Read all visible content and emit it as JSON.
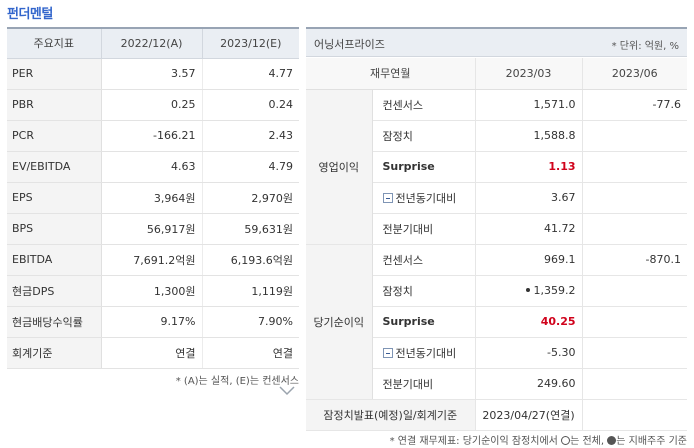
{
  "section_title": "펀더멘털",
  "left": {
    "headers": [
      "주요지표",
      "2022/12(A)",
      "2023/12(E)"
    ],
    "rows": [
      {
        "label": "PER",
        "a": "3.57",
        "e": "4.77"
      },
      {
        "label": "PBR",
        "a": "0.25",
        "e": "0.24"
      },
      {
        "label": "PCR",
        "a": "-166.21",
        "e": "2.43"
      },
      {
        "label": "EV/EBITDA",
        "a": "4.63",
        "e": "4.79"
      },
      {
        "label": "EPS",
        "a": "3,964원",
        "e": "2,970원"
      },
      {
        "label": "BPS",
        "a": "56,917원",
        "e": "59,631원"
      },
      {
        "label": "EBITDA",
        "a": "7,691.2억원",
        "e": "6,193.6억원"
      },
      {
        "label": "현금DPS",
        "a": "1,300원",
        "e": "1,119원"
      },
      {
        "label": "현금배당수익률",
        "a": "9.17%",
        "e": "7.90%"
      },
      {
        "label": "회계기준",
        "a": "연결",
        "e": "연결"
      }
    ],
    "note": "* (A)는 실적, (E)는 컨센서스"
  },
  "right": {
    "company": "어닝서프라이즈",
    "unit": "* 단위: 억원, %",
    "headers": [
      "재무연월",
      "2023/03",
      "2023/06"
    ],
    "groups": [
      {
        "name": "영업이익",
        "rows": [
          {
            "label": "컨센서스",
            "v1": "1,571.0",
            "v2": "-77.6"
          },
          {
            "label": "잠정치",
            "v1": "1,588.8",
            "v2": ""
          },
          {
            "label": "Surprise",
            "v1": "1.13",
            "v2": ""
          },
          {
            "label": "전년동기대비",
            "v1": "3.67",
            "v2": ""
          },
          {
            "label": "전분기대비",
            "v1": "41.72",
            "v2": ""
          }
        ]
      },
      {
        "name": "당기순이익",
        "rows": [
          {
            "label": "컨센서스",
            "v1": "969.1",
            "v2": "-870.1"
          },
          {
            "label": "잠정치",
            "v1": "1,359.2",
            "v2": ""
          },
          {
            "label": "Surprise",
            "v1": "40.25",
            "v2": ""
          },
          {
            "label": "전년동기대비",
            "v1": "-5.30",
            "v2": ""
          },
          {
            "label": "전분기대비",
            "v1": "249.60",
            "v2": ""
          }
        ]
      }
    ],
    "footer_label": "잠정치발표(예정)일/회계기준",
    "footer_value": "2023/04/27(연결)",
    "note_prefix": "* 연결 재무제표: 당기순이익 잠정치에서",
    "note_mid": "는 전체,",
    "note_end": "는 지배주주 기준"
  }
}
